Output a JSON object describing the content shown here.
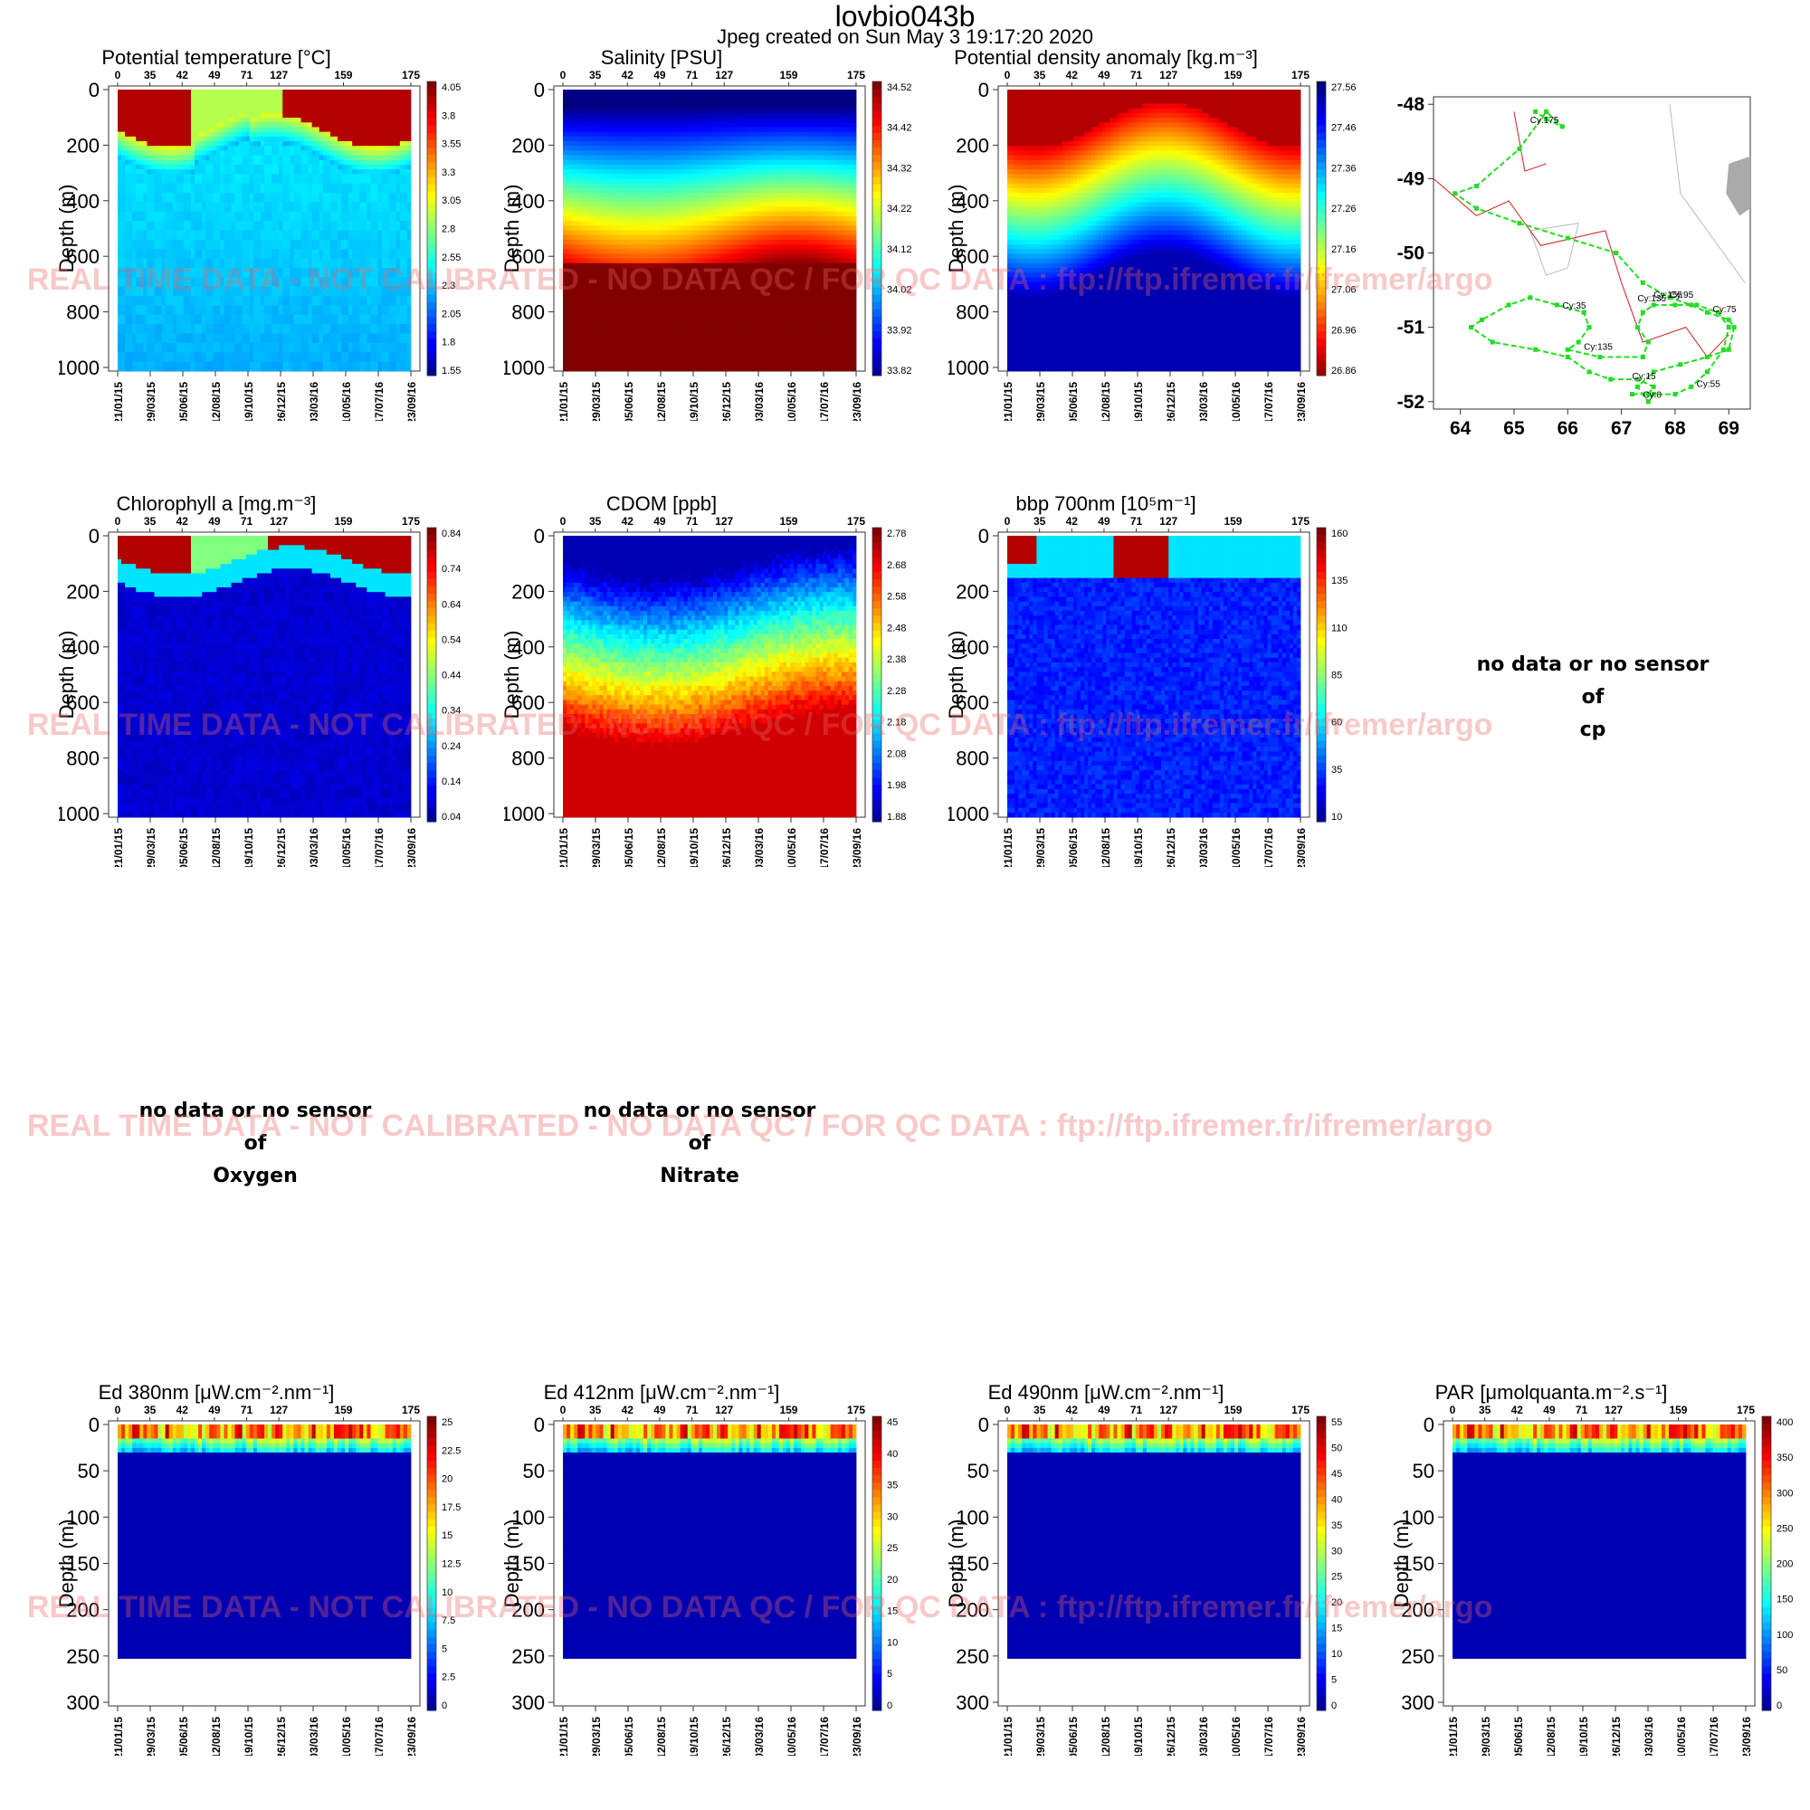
{
  "header": {
    "title": "lovbio043b",
    "subtitle": "Jpeg created on  Sun May  3 19:17:20 2020"
  },
  "watermark": "REAL TIME DATA - NOT CALIBRATED - NO DATA QC   /  FOR QC DATA : ftp://ftp.ifremer.fr/ifremer/argo",
  "common": {
    "cycle_ticks": [
      "0",
      "35",
      "42",
      "49",
      "71",
      "127",
      "159",
      "175"
    ],
    "date_ticks": [
      "21/01/15",
      "29/03/15",
      "05/06/15",
      "12/08/15",
      "19/10/15",
      "26/12/15",
      "03/03/16",
      "10/05/16",
      "17/07/16",
      "23/09/16"
    ],
    "ylabel": "Depth (m)"
  },
  "chart_data": [
    {
      "id": "temp",
      "type": "heatmap",
      "title": "Potential temperature [°C]",
      "colormap": "jet",
      "depth_ticks": [
        "0",
        "200",
        "400",
        "600",
        "800",
        "1000"
      ],
      "ylim": [
        0,
        1000
      ],
      "colorbar_ticks": [
        "4.05",
        "3.8",
        "3.55",
        "3.3",
        "3.05",
        "2.8",
        "2.55",
        "2.3",
        "2.05",
        "1.8",
        "1.55"
      ]
    },
    {
      "id": "sal",
      "type": "heatmap",
      "title": "Salinity [PSU]",
      "colormap": "jet",
      "depth_ticks": [
        "0",
        "200",
        "400",
        "600",
        "800",
        "1000"
      ],
      "ylim": [
        0,
        1000
      ],
      "colorbar_ticks": [
        "34.52",
        "34.42",
        "34.32",
        "34.22",
        "34.12",
        "34.02",
        "33.92",
        "33.82"
      ]
    },
    {
      "id": "dens",
      "type": "heatmap",
      "title": "Potential density anomaly [kg.m⁻³]",
      "colormap": "jet-reversed",
      "depth_ticks": [
        "0",
        "200",
        "400",
        "600",
        "800",
        "1000"
      ],
      "ylim": [
        0,
        1000
      ],
      "colorbar_ticks": [
        "27.56",
        "27.46",
        "27.36",
        "27.26",
        "27.16",
        "27.06",
        "26.96",
        "26.86"
      ]
    },
    {
      "id": "chla",
      "type": "heatmap",
      "title": "Chlorophyll a [mg.m⁻³]",
      "colormap": "jet",
      "depth_ticks": [
        "0",
        "200",
        "400",
        "600",
        "800",
        "1000"
      ],
      "ylim": [
        0,
        1000
      ],
      "colorbar_ticks": [
        "0.84",
        "0.74",
        "0.64",
        "0.54",
        "0.44",
        "0.34",
        "0.24",
        "0.14",
        "0.04"
      ]
    },
    {
      "id": "cdom",
      "type": "heatmap",
      "title": "CDOM  [ppb]",
      "colormap": "jet",
      "depth_ticks": [
        "0",
        "200",
        "400",
        "600",
        "800",
        "1000"
      ],
      "ylim": [
        0,
        1000
      ],
      "colorbar_ticks": [
        "2.78",
        "2.68",
        "2.58",
        "2.48",
        "2.38",
        "2.28",
        "2.18",
        "2.08",
        "1.98",
        "1.88"
      ]
    },
    {
      "id": "bbp",
      "type": "heatmap",
      "title": "bbp 700nm [10⁵m⁻¹]",
      "colormap": "jet",
      "depth_ticks": [
        "0",
        "200",
        "400",
        "600",
        "800",
        "1000"
      ],
      "ylim": [
        0,
        1000
      ],
      "colorbar_ticks": [
        "160",
        "135",
        "110",
        "85",
        "60",
        "35",
        "10"
      ]
    },
    {
      "id": "ed380",
      "type": "heatmap",
      "title": "Ed 380nm [μW.cm⁻².nm⁻¹]",
      "colormap": "jet",
      "depth_ticks": [
        "0",
        "50",
        "100",
        "150",
        "200",
        "250",
        "300"
      ],
      "ylim": [
        0,
        300
      ],
      "colorbar_ticks": [
        "25",
        "22.5",
        "20",
        "17.5",
        "15",
        "12.5",
        "10",
        "7.5",
        "5",
        "2.5",
        "0"
      ]
    },
    {
      "id": "ed412",
      "type": "heatmap",
      "title": "Ed 412nm [μW.cm⁻².nm⁻¹]",
      "colormap": "jet",
      "depth_ticks": [
        "0",
        "50",
        "100",
        "150",
        "200",
        "250",
        "300"
      ],
      "ylim": [
        0,
        300
      ],
      "colorbar_ticks": [
        "45",
        "40",
        "35",
        "30",
        "25",
        "20",
        "15",
        "10",
        "5",
        "0"
      ]
    },
    {
      "id": "ed490",
      "type": "heatmap",
      "title": "Ed 490nm [μW.cm⁻².nm⁻¹]",
      "colormap": "jet",
      "depth_ticks": [
        "0",
        "50",
        "100",
        "150",
        "200",
        "250",
        "300"
      ],
      "ylim": [
        0,
        300
      ],
      "colorbar_ticks": [
        "55",
        "50",
        "45",
        "40",
        "35",
        "30",
        "25",
        "20",
        "15",
        "10",
        "5",
        "0"
      ]
    },
    {
      "id": "par",
      "type": "heatmap",
      "title": "PAR [μmolquanta.m⁻².s⁻¹]",
      "colormap": "jet",
      "depth_ticks": [
        "0",
        "50",
        "100",
        "150",
        "200",
        "250",
        "300"
      ],
      "ylim": [
        0,
        300
      ],
      "colorbar_ticks": [
        "400",
        "350",
        "300",
        "250",
        "200",
        "150",
        "100",
        "50",
        "0"
      ]
    },
    {
      "id": "map",
      "type": "scatter",
      "x_ticks": [
        "64",
        "65",
        "66",
        "67",
        "68",
        "69"
      ],
      "y_ticks": [
        "-48",
        "-49",
        "-50",
        "-51",
        "-52"
      ],
      "xlim": [
        63.5,
        69.4
      ],
      "ylim": [
        -52.1,
        -47.9
      ],
      "track_lon": [
        67.2,
        67.5,
        67.6,
        67.3,
        66.8,
        66.4,
        66.0,
        65.4,
        64.6,
        64.2,
        64.4,
        64.9,
        65.3,
        65.8,
        66.3,
        66.4,
        66.2,
        66.0,
        66.6,
        67.4,
        67.5,
        67.3,
        67.4,
        67.6,
        68.0,
        68.4,
        68.8,
        69.0,
        68.9,
        68.6,
        68.3,
        68.0,
        67.6,
        67.5,
        67.3,
        67.6,
        68.1,
        68.6,
        69.0,
        69.1,
        69.0,
        68.6,
        68.3,
        67.9,
        67.4,
        66.9,
        66.0,
        65.1,
        64.3,
        63.9,
        64.3,
        65.1,
        65.6,
        65.9,
        65.6,
        65.4
      ],
      "track_lat": [
        -51.9,
        -51.9,
        -51.8,
        -51.7,
        -51.7,
        -51.6,
        -51.4,
        -51.3,
        -51.2,
        -51.0,
        -50.9,
        -50.7,
        -50.6,
        -50.7,
        -50.8,
        -51.0,
        -51.2,
        -51.3,
        -51.4,
        -51.4,
        -51.2,
        -51.0,
        -50.8,
        -50.7,
        -50.7,
        -50.7,
        -50.8,
        -51.0,
        -51.3,
        -51.6,
        -51.8,
        -51.9,
        -51.9,
        -52.0,
        -51.8,
        -51.6,
        -51.5,
        -51.4,
        -51.3,
        -51.0,
        -50.9,
        -50.8,
        -50.7,
        -50.6,
        -50.4,
        -50.0,
        -49.8,
        -49.6,
        -49.4,
        -49.2,
        -49.1,
        -48.6,
        -48.1,
        -48.3,
        -48.2,
        -48.1
      ],
      "cycle_labels": [
        {
          "text": "Cy:0",
          "lon": 67.4,
          "lat": -51.95
        },
        {
          "text": "Cy:15",
          "lon": 67.2,
          "lat": -51.7
        },
        {
          "text": "Cy:35",
          "lon": 65.9,
          "lat": -50.75
        },
        {
          "text": "Cy:55",
          "lon": 68.4,
          "lat": -51.8
        },
        {
          "text": "Cy:75",
          "lon": 68.7,
          "lat": -50.8
        },
        {
          "text": "Cy:95",
          "lon": 67.9,
          "lat": -50.6
        },
        {
          "text": "Cy:135",
          "lon": 66.3,
          "lat": -51.3
        },
        {
          "text": "Cy:135",
          "lon": 67.3,
          "lat": -50.65
        },
        {
          "text": "Cy:155",
          "lon": 67.6,
          "lat": -50.6
        },
        {
          "text": "Cy:175",
          "lon": 65.3,
          "lat": -48.25
        }
      ]
    }
  ],
  "no_data_panels": [
    {
      "id": "cp",
      "lines": [
        "no data or no sensor",
        "of",
        "cp"
      ]
    },
    {
      "id": "oxygen",
      "lines": [
        "no data or no sensor",
        "of",
        "Oxygen"
      ]
    },
    {
      "id": "nitrate",
      "lines": [
        "no data or no sensor",
        "of",
        "Nitrate"
      ]
    }
  ],
  "colors": {
    "track": "#22dd22",
    "coast": "#cc2222",
    "bathy": "#bbbbbb"
  }
}
